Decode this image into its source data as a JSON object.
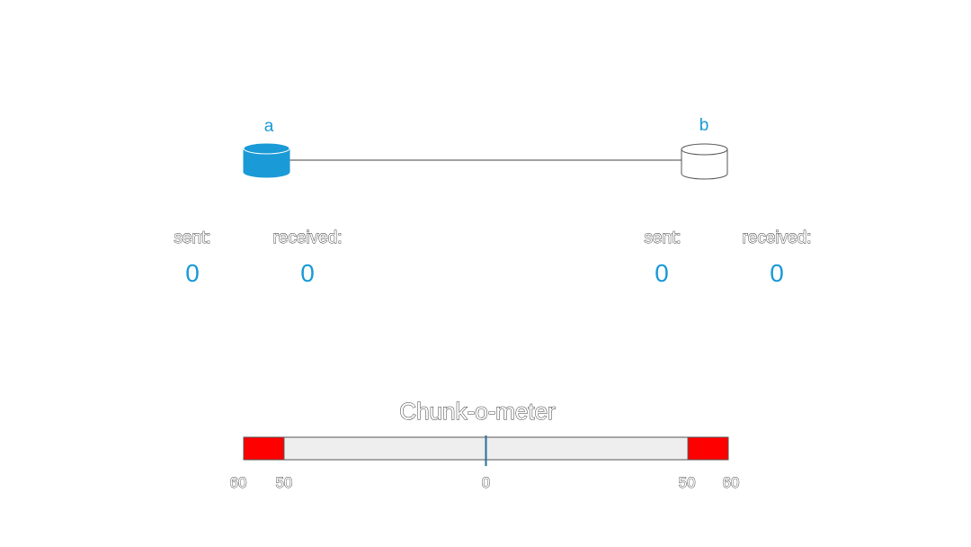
{
  "colors": {
    "accent": "#1a9ad6",
    "danger": "#ff0000",
    "track": "#eeeeee",
    "outline": "#555555"
  },
  "nodes": {
    "a": {
      "label": "a",
      "filled": true,
      "sent_label": "sent:",
      "sent": "0",
      "received_label": "received:",
      "received": "0"
    },
    "b": {
      "label": "b",
      "filled": false,
      "sent_label": "sent:",
      "sent": "0",
      "received_label": "received:",
      "received": "0"
    }
  },
  "meter": {
    "title": "Chunk-o-meter",
    "min": -60,
    "max": 60,
    "danger_threshold": 50,
    "value": 0,
    "ticks": [
      {
        "value": -60,
        "label": "60"
      },
      {
        "value": -50,
        "label": "50"
      },
      {
        "value": 0,
        "label": "0"
      },
      {
        "value": 50,
        "label": "50"
      },
      {
        "value": 60,
        "label": "60"
      }
    ]
  }
}
